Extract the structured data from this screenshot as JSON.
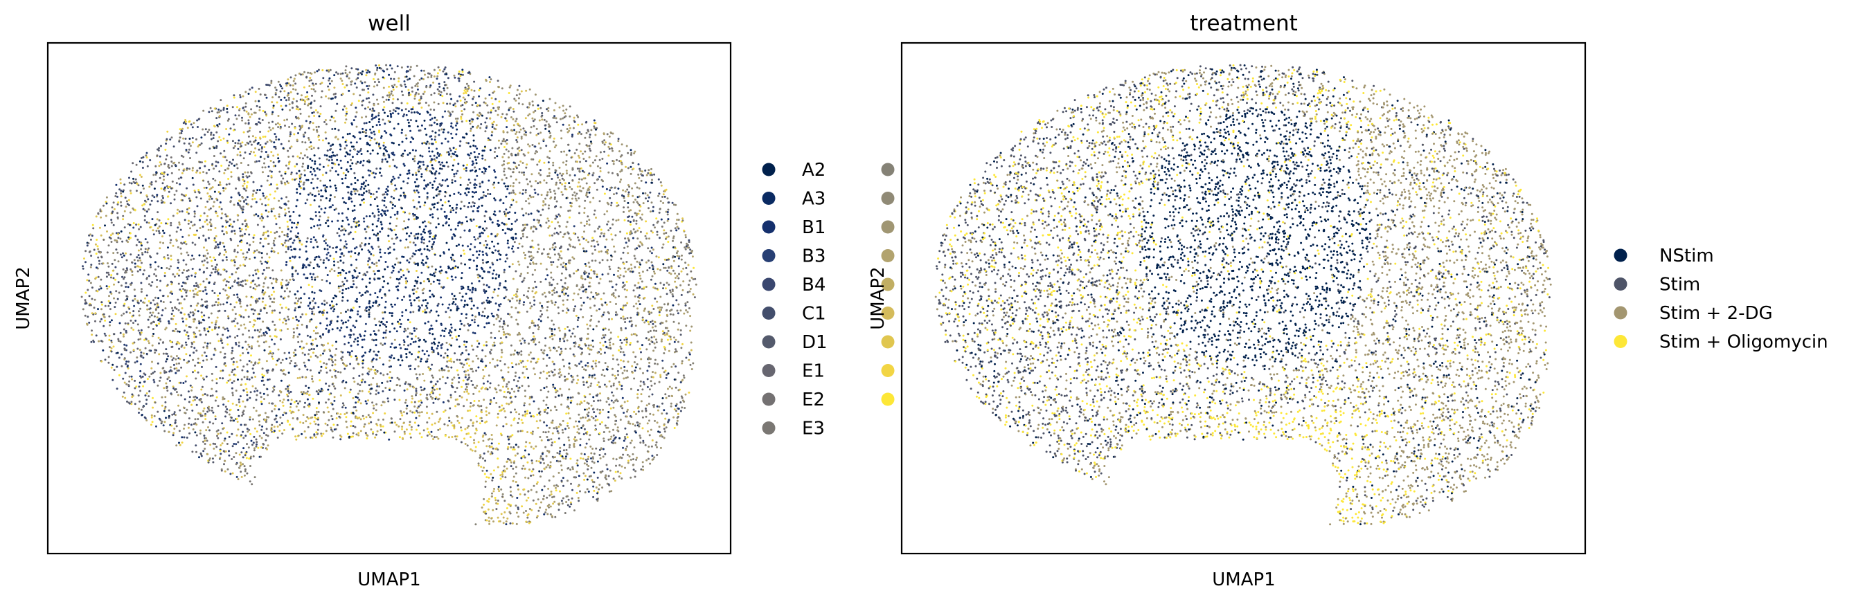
{
  "chart_data": [
    {
      "type": "scatter",
      "title": "well",
      "xlabel": "UMAP1",
      "ylabel": "UMAP2",
      "grid": false,
      "ticks": false,
      "legend": {
        "placement": "right",
        "columns": 2,
        "entries": [
          {
            "label": "A2",
            "color": "#00204c"
          },
          {
            "label": "A3",
            "color": "#0a2a62"
          },
          {
            "label": "B1",
            "color": "#15306d"
          },
          {
            "label": "B3",
            "color": "#273f74"
          },
          {
            "label": "B4",
            "color": "#3a476f"
          },
          {
            "label": "C1",
            "color": "#434e6c"
          },
          {
            "label": "D1",
            "color": "#545a6c"
          },
          {
            "label": "E1",
            "color": "#676670"
          },
          {
            "label": "E2",
            "color": "#747172"
          },
          {
            "label": "E3",
            "color": "#7a7773"
          },
          {
            "label": "",
            "color": "#858276"
          },
          {
            "label": "",
            "color": "#908a76"
          },
          {
            "label": "",
            "color": "#a09673"
          },
          {
            "label": "",
            "color": "#b2a36e"
          },
          {
            "label": "",
            "color": "#c1ae63"
          },
          {
            "label": "",
            "color": "#d4bb5b"
          },
          {
            "label": "",
            "color": "#e0c64f"
          },
          {
            "label": "",
            "color": "#f2d544"
          },
          {
            "label": "",
            "color": "#fde737"
          }
        ]
      },
      "region": {
        "x": [
          0,
          10
        ],
        "y": [
          0,
          10
        ]
      }
    },
    {
      "type": "scatter",
      "title": "treatment",
      "xlabel": "UMAP1",
      "ylabel": "UMAP2",
      "grid": false,
      "ticks": false,
      "legend": {
        "placement": "right",
        "columns": 1,
        "entries": [
          {
            "label": "NStim",
            "color": "#00204c"
          },
          {
            "label": "Stim",
            "color": "#4e5468"
          },
          {
            "label": "Stim + 2-DG",
            "color": "#a39670"
          },
          {
            "label": "Stim + Oligomycin",
            "color": "#fde737"
          }
        ]
      },
      "region": {
        "x": [
          0,
          10
        ],
        "y": [
          0,
          10
        ]
      }
    }
  ]
}
